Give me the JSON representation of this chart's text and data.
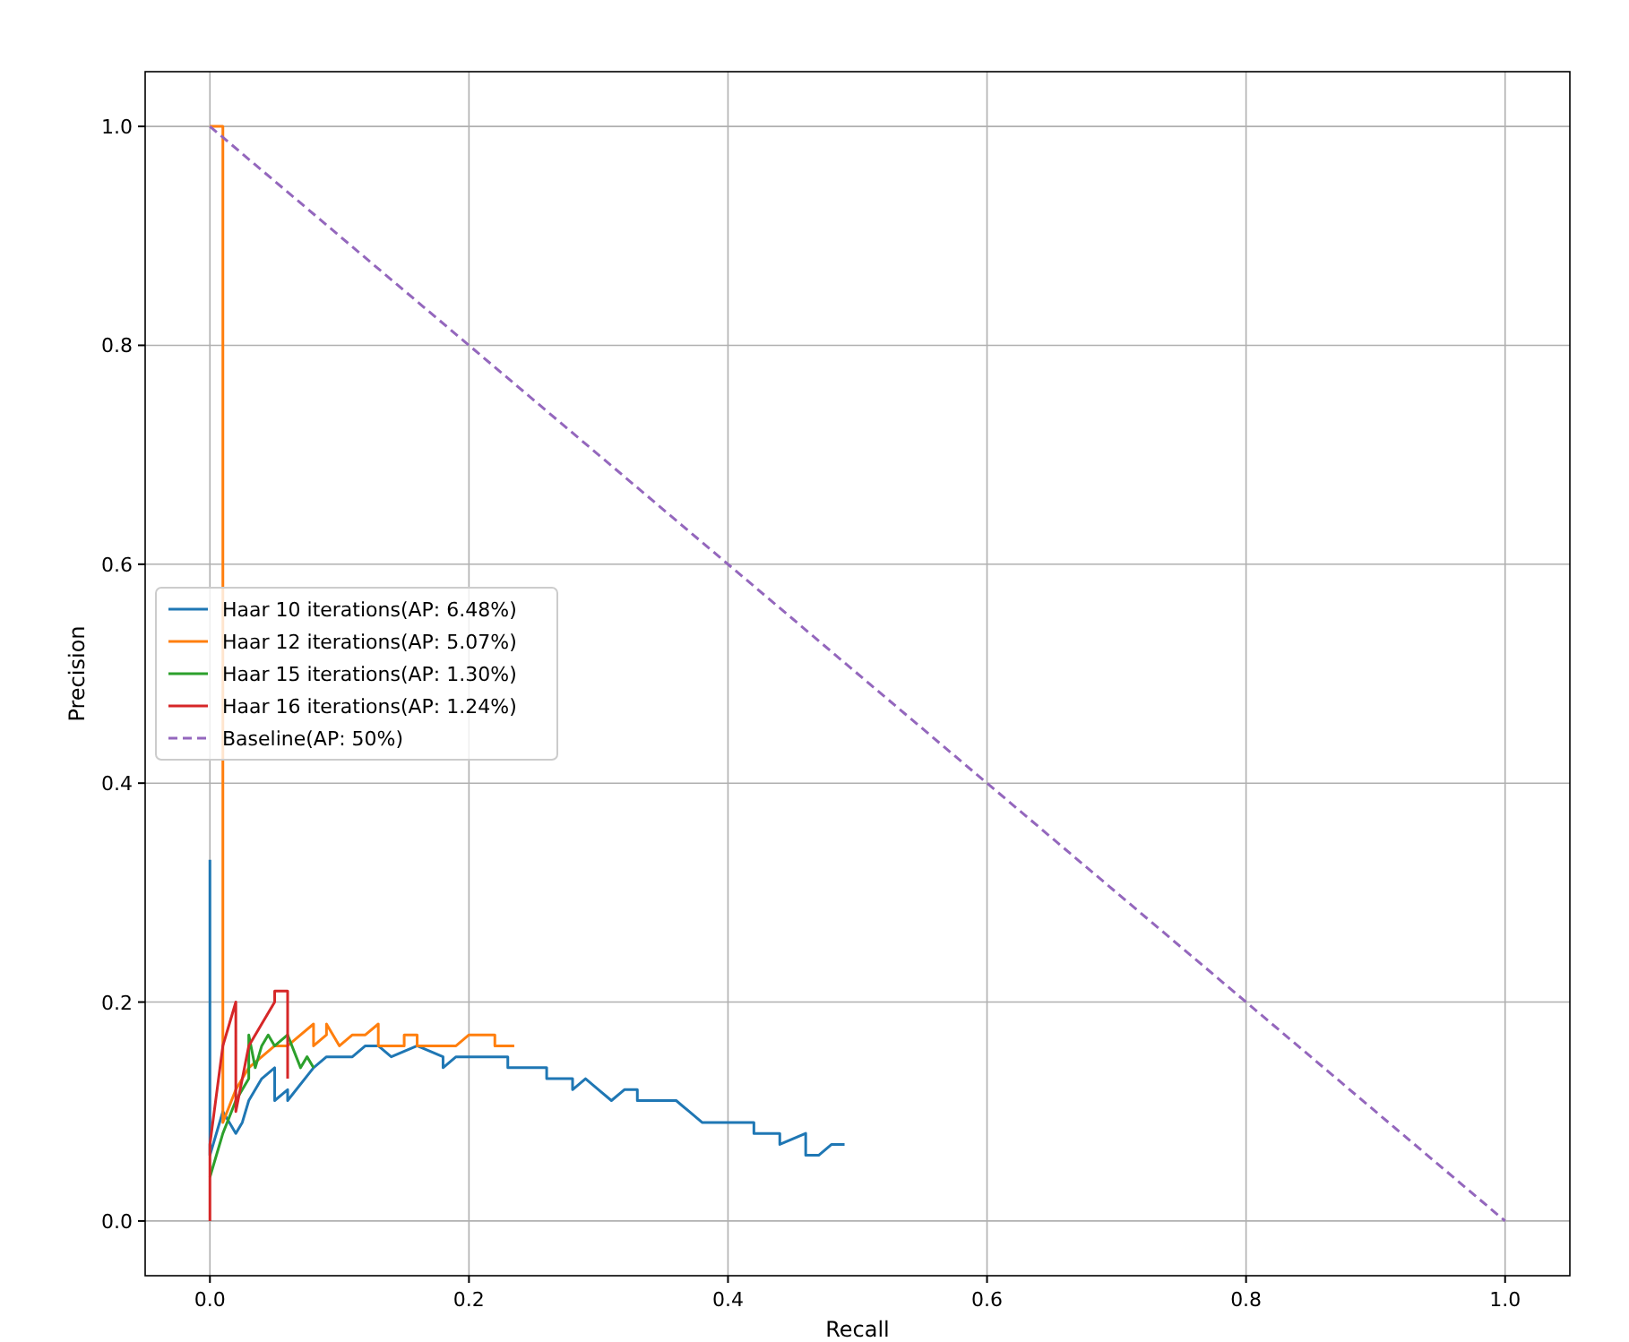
{
  "chart_data": {
    "type": "line",
    "xlabel": "Recall",
    "ylabel": "Precision",
    "xlim": [
      -0.05,
      1.05
    ],
    "ylim": [
      -0.05,
      1.05
    ],
    "xticks": [
      {
        "value": 0,
        "label": "0.0"
      },
      {
        "value": 0.2,
        "label": "0.2"
      },
      {
        "value": 0.4,
        "label": "0.4"
      },
      {
        "value": 0.6,
        "label": "0.6"
      },
      {
        "value": 0.8,
        "label": "0.8"
      },
      {
        "value": 1,
        "label": "1.0"
      }
    ],
    "yticks": [
      {
        "value": 0,
        "label": "0.0"
      },
      {
        "value": 0.2,
        "label": "0.2"
      },
      {
        "value": 0.4,
        "label": "0.4"
      },
      {
        "value": 0.6,
        "label": "0.6"
      },
      {
        "value": 0.8,
        "label": "0.8"
      },
      {
        "value": 1,
        "label": "1.0"
      }
    ],
    "grid": true,
    "legend": "left",
    "marker": "none",
    "series": [
      {
        "name": "Haar 10 iterations(AP: 6.48%)",
        "color": "#1f77b4",
        "x": [
          0,
          0,
          0.01,
          0.02,
          0.025,
          0.03,
          0.035,
          0.04,
          0.05,
          0.05,
          0.06,
          0.06,
          0.08,
          0.09,
          0.11,
          0.12,
          0.13,
          0.14,
          0.16,
          0.18,
          0.18,
          0.19,
          0.2,
          0.23,
          0.23,
          0.26,
          0.26,
          0.28,
          0.28,
          0.29,
          0.3,
          0.31,
          0.32,
          0.33,
          0.33,
          0.36,
          0.37,
          0.38,
          0.42,
          0.42,
          0.44,
          0.44,
          0.46,
          0.46,
          0.47,
          0.48,
          0.49
        ],
        "values": [
          0.33,
          0.06,
          0.1,
          0.08,
          0.09,
          0.11,
          0.12,
          0.13,
          0.14,
          0.11,
          0.12,
          0.11,
          0.14,
          0.15,
          0.15,
          0.16,
          0.16,
          0.15,
          0.16,
          0.15,
          0.14,
          0.15,
          0.15,
          0.15,
          0.14,
          0.14,
          0.13,
          0.13,
          0.12,
          0.13,
          0.12,
          0.11,
          0.12,
          0.12,
          0.11,
          0.11,
          0.1,
          0.09,
          0.09,
          0.08,
          0.08,
          0.07,
          0.08,
          0.06,
          0.06,
          0.07,
          0.07
        ]
      },
      {
        "name": "Haar 12 iterations(AP: 5.07%)",
        "color": "#ff7f0e",
        "x": [
          0,
          0.01,
          0.01,
          0.02,
          0.025,
          0.03,
          0.04,
          0.05,
          0.06,
          0.07,
          0.08,
          0.08,
          0.09,
          0.09,
          0.1,
          0.11,
          0.12,
          0.13,
          0.13,
          0.15,
          0.15,
          0.16,
          0.16,
          0.19,
          0.2,
          0.22,
          0.22,
          0.235
        ],
        "values": [
          1,
          1,
          0.09,
          0.12,
          0.13,
          0.14,
          0.15,
          0.16,
          0.16,
          0.17,
          0.18,
          0.16,
          0.17,
          0.18,
          0.16,
          0.17,
          0.17,
          0.18,
          0.16,
          0.16,
          0.17,
          0.17,
          0.16,
          0.16,
          0.17,
          0.17,
          0.16,
          0.16
        ]
      },
      {
        "name": "Haar 15 iterations(AP: 1.30%)",
        "color": "#2ca02c",
        "x": [
          0,
          0.01,
          0.02,
          0.03,
          0.03,
          0.035,
          0.04,
          0.045,
          0.05,
          0.06,
          0.07,
          0.075,
          0.08
        ],
        "values": [
          0.04,
          0.08,
          0.11,
          0.13,
          0.17,
          0.14,
          0.16,
          0.17,
          0.16,
          0.17,
          0.14,
          0.15,
          0.14
        ]
      },
      {
        "name": "Haar 16 iterations(AP: 1.24%)",
        "color": "#d62728",
        "x": [
          0,
          0,
          0.01,
          0.02,
          0.02,
          0.03,
          0.04,
          0.05,
          0.05,
          0.06,
          0.06
        ],
        "values": [
          0,
          0.07,
          0.16,
          0.2,
          0.1,
          0.16,
          0.18,
          0.2,
          0.21,
          0.21,
          0.13
        ]
      },
      {
        "name": "Baseline(AP: 50%)",
        "color": "#9467bd",
        "line_style": "dashed",
        "x": [
          0,
          1
        ],
        "values": [
          1,
          0
        ]
      }
    ]
  }
}
